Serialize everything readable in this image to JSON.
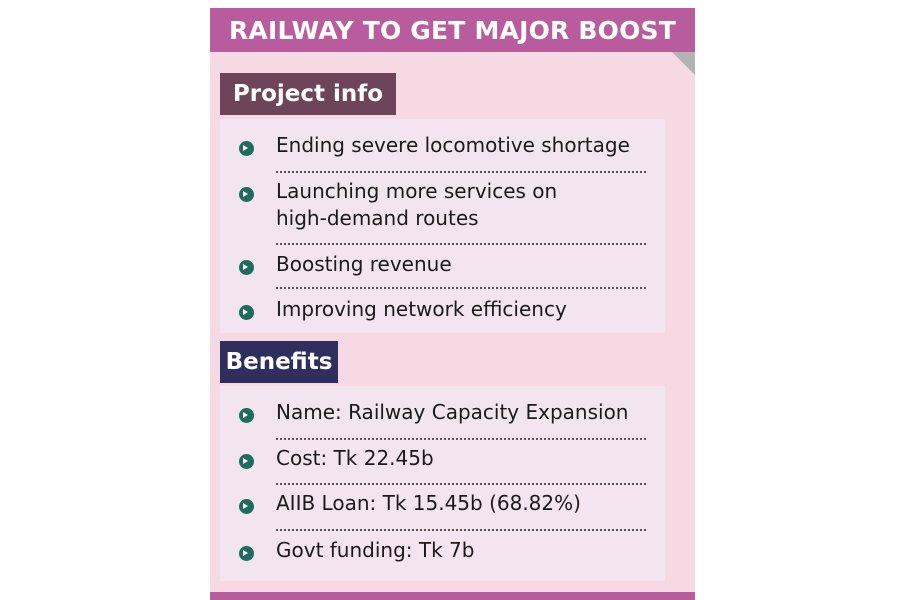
{
  "title": "RAILWAY TO GET MAJOR BOOST",
  "sections": {
    "project": {
      "heading": "Project info",
      "items": [
        "Ending severe locomotive shortage",
        "Launching more services on",
        "high-demand routes",
        "Boosting revenue",
        "Improving network efficiency"
      ]
    },
    "benefits": {
      "heading": "Benefits",
      "items": [
        "Name: Railway Capacity Expansion",
        "Cost: Tk 22.45b",
        "AIIB Loan: Tk 15.45b (68.82%)",
        "Govt funding: Tk 7b"
      ]
    }
  },
  "colors": {
    "title_bar": "#b85c9e",
    "card_background": "#f6d9e2",
    "project_heading_bg": "#6e4458",
    "benefits_heading_bg": "#2e2f5e",
    "list_background": "#f3e5f0",
    "bullet": "#1f6b5e"
  },
  "icons": {
    "bullet": "circle-arrow-right-icon"
  }
}
